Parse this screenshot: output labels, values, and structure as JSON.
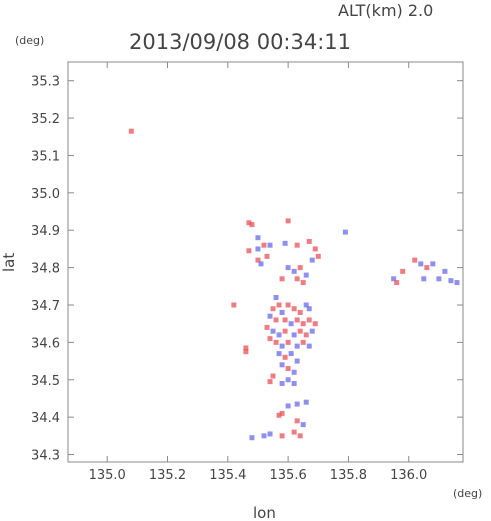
{
  "header": {
    "alt_label": "ALT(km) 2.0",
    "timestamp": "2013/09/08 00:34:11"
  },
  "chart_data": {
    "type": "scatter",
    "title": "2013/09/08 00:34:11",
    "subtitle": "ALT(km) 2.0",
    "xlabel": "lon",
    "ylabel": "lat",
    "x_unit": "(deg)",
    "y_unit": "(deg)",
    "xlim": [
      134.87,
      136.18
    ],
    "ylim": [
      34.28,
      35.35
    ],
    "xticks": [
      135.0,
      135.2,
      135.4,
      135.6,
      135.8,
      136.0
    ],
    "xtick_labels": [
      "135.0",
      "135.2",
      "135.4",
      "135.6",
      "135.8",
      "136.0"
    ],
    "yticks": [
      34.3,
      34.4,
      34.5,
      34.6,
      34.7,
      34.8,
      34.9,
      35.0,
      35.1,
      35.2,
      35.3
    ],
    "ytick_labels": [
      "34.3",
      "34.4",
      "34.5",
      "34.6",
      "34.7",
      "34.8",
      "34.9",
      "35.0",
      "35.1",
      "35.2",
      "35.3"
    ],
    "grid": false,
    "colors": {
      "positive": "#e8525a",
      "negative": "#6a6ae8"
    },
    "points": [
      {
        "lon": 135.08,
        "lat": 35.165,
        "sign": "pos"
      },
      {
        "lon": 135.47,
        "lat": 34.92,
        "sign": "pos"
      },
      {
        "lon": 135.48,
        "lat": 34.915,
        "sign": "pos"
      },
      {
        "lon": 135.6,
        "lat": 34.925,
        "sign": "pos"
      },
      {
        "lon": 135.5,
        "lat": 34.88,
        "sign": "neg"
      },
      {
        "lon": 135.52,
        "lat": 34.86,
        "sign": "pos"
      },
      {
        "lon": 135.5,
        "lat": 34.85,
        "sign": "neg"
      },
      {
        "lon": 135.47,
        "lat": 34.845,
        "sign": "pos"
      },
      {
        "lon": 135.53,
        "lat": 34.83,
        "sign": "pos"
      },
      {
        "lon": 135.5,
        "lat": 34.82,
        "sign": "pos"
      },
      {
        "lon": 135.51,
        "lat": 34.81,
        "sign": "neg"
      },
      {
        "lon": 135.54,
        "lat": 34.86,
        "sign": "neg"
      },
      {
        "lon": 135.59,
        "lat": 34.865,
        "sign": "neg"
      },
      {
        "lon": 135.63,
        "lat": 34.86,
        "sign": "pos"
      },
      {
        "lon": 135.67,
        "lat": 34.87,
        "sign": "pos"
      },
      {
        "lon": 135.69,
        "lat": 34.85,
        "sign": "pos"
      },
      {
        "lon": 135.7,
        "lat": 34.83,
        "sign": "pos"
      },
      {
        "lon": 135.68,
        "lat": 34.82,
        "sign": "neg"
      },
      {
        "lon": 135.79,
        "lat": 34.895,
        "sign": "neg"
      },
      {
        "lon": 135.6,
        "lat": 34.8,
        "sign": "neg"
      },
      {
        "lon": 135.62,
        "lat": 34.79,
        "sign": "neg"
      },
      {
        "lon": 135.63,
        "lat": 34.77,
        "sign": "pos"
      },
      {
        "lon": 135.65,
        "lat": 34.76,
        "sign": "pos"
      },
      {
        "lon": 135.64,
        "lat": 34.8,
        "sign": "pos"
      },
      {
        "lon": 135.66,
        "lat": 34.78,
        "sign": "neg"
      },
      {
        "lon": 135.58,
        "lat": 34.77,
        "sign": "pos"
      },
      {
        "lon": 135.95,
        "lat": 34.77,
        "sign": "neg"
      },
      {
        "lon": 135.96,
        "lat": 34.76,
        "sign": "pos"
      },
      {
        "lon": 135.98,
        "lat": 34.79,
        "sign": "pos"
      },
      {
        "lon": 136.02,
        "lat": 34.82,
        "sign": "pos"
      },
      {
        "lon": 136.04,
        "lat": 34.81,
        "sign": "neg"
      },
      {
        "lon": 136.06,
        "lat": 34.8,
        "sign": "pos"
      },
      {
        "lon": 136.08,
        "lat": 34.81,
        "sign": "neg"
      },
      {
        "lon": 136.1,
        "lat": 34.77,
        "sign": "neg"
      },
      {
        "lon": 136.12,
        "lat": 34.79,
        "sign": "neg"
      },
      {
        "lon": 136.14,
        "lat": 34.765,
        "sign": "neg"
      },
      {
        "lon": 136.16,
        "lat": 34.76,
        "sign": "neg"
      },
      {
        "lon": 136.05,
        "lat": 34.77,
        "sign": "neg"
      },
      {
        "lon": 135.56,
        "lat": 34.72,
        "sign": "neg"
      },
      {
        "lon": 135.57,
        "lat": 34.7,
        "sign": "pos"
      },
      {
        "lon": 135.55,
        "lat": 34.69,
        "sign": "pos"
      },
      {
        "lon": 135.58,
        "lat": 34.68,
        "sign": "neg"
      },
      {
        "lon": 135.6,
        "lat": 34.7,
        "sign": "pos"
      },
      {
        "lon": 135.62,
        "lat": 34.69,
        "sign": "pos"
      },
      {
        "lon": 135.64,
        "lat": 34.68,
        "sign": "pos"
      },
      {
        "lon": 135.66,
        "lat": 34.7,
        "sign": "neg"
      },
      {
        "lon": 135.67,
        "lat": 34.69,
        "sign": "neg"
      },
      {
        "lon": 135.54,
        "lat": 34.67,
        "sign": "neg"
      },
      {
        "lon": 135.56,
        "lat": 34.66,
        "sign": "pos"
      },
      {
        "lon": 135.59,
        "lat": 34.66,
        "sign": "pos"
      },
      {
        "lon": 135.61,
        "lat": 34.65,
        "sign": "neg"
      },
      {
        "lon": 135.63,
        "lat": 34.66,
        "sign": "pos"
      },
      {
        "lon": 135.65,
        "lat": 34.65,
        "sign": "pos"
      },
      {
        "lon": 135.67,
        "lat": 34.66,
        "sign": "pos"
      },
      {
        "lon": 135.69,
        "lat": 34.65,
        "sign": "pos"
      },
      {
        "lon": 135.53,
        "lat": 34.64,
        "sign": "pos"
      },
      {
        "lon": 135.55,
        "lat": 34.63,
        "sign": "neg"
      },
      {
        "lon": 135.57,
        "lat": 34.62,
        "sign": "neg"
      },
      {
        "lon": 135.59,
        "lat": 34.63,
        "sign": "pos"
      },
      {
        "lon": 135.62,
        "lat": 34.62,
        "sign": "neg"
      },
      {
        "lon": 135.64,
        "lat": 34.63,
        "sign": "pos"
      },
      {
        "lon": 135.66,
        "lat": 34.62,
        "sign": "pos"
      },
      {
        "lon": 135.68,
        "lat": 34.63,
        "sign": "neg"
      },
      {
        "lon": 135.54,
        "lat": 34.61,
        "sign": "pos"
      },
      {
        "lon": 135.56,
        "lat": 34.6,
        "sign": "pos"
      },
      {
        "lon": 135.58,
        "lat": 34.59,
        "sign": "neg"
      },
      {
        "lon": 135.6,
        "lat": 34.6,
        "sign": "pos"
      },
      {
        "lon": 135.63,
        "lat": 34.59,
        "sign": "neg"
      },
      {
        "lon": 135.65,
        "lat": 34.6,
        "sign": "pos"
      },
      {
        "lon": 135.67,
        "lat": 34.59,
        "sign": "neg"
      },
      {
        "lon": 135.46,
        "lat": 34.585,
        "sign": "pos"
      },
      {
        "lon": 135.46,
        "lat": 34.575,
        "sign": "pos"
      },
      {
        "lon": 135.57,
        "lat": 34.57,
        "sign": "neg"
      },
      {
        "lon": 135.59,
        "lat": 34.56,
        "sign": "pos"
      },
      {
        "lon": 135.61,
        "lat": 34.57,
        "sign": "neg"
      },
      {
        "lon": 135.63,
        "lat": 34.55,
        "sign": "neg"
      },
      {
        "lon": 135.58,
        "lat": 34.54,
        "sign": "neg"
      },
      {
        "lon": 135.6,
        "lat": 34.53,
        "sign": "pos"
      },
      {
        "lon": 135.62,
        "lat": 34.52,
        "sign": "neg"
      },
      {
        "lon": 135.55,
        "lat": 34.51,
        "sign": "pos"
      },
      {
        "lon": 135.6,
        "lat": 34.5,
        "sign": "neg"
      },
      {
        "lon": 135.62,
        "lat": 34.49,
        "sign": "neg"
      },
      {
        "lon": 135.58,
        "lat": 34.49,
        "sign": "neg"
      },
      {
        "lon": 135.54,
        "lat": 34.495,
        "sign": "pos"
      },
      {
        "lon": 135.6,
        "lat": 34.43,
        "sign": "neg"
      },
      {
        "lon": 135.63,
        "lat": 34.435,
        "sign": "neg"
      },
      {
        "lon": 135.66,
        "lat": 34.44,
        "sign": "neg"
      },
      {
        "lon": 135.58,
        "lat": 34.41,
        "sign": "pos"
      },
      {
        "lon": 135.57,
        "lat": 34.405,
        "sign": "pos"
      },
      {
        "lon": 135.63,
        "lat": 34.39,
        "sign": "pos"
      },
      {
        "lon": 135.65,
        "lat": 34.38,
        "sign": "neg"
      },
      {
        "lon": 135.62,
        "lat": 34.36,
        "sign": "pos"
      },
      {
        "lon": 135.64,
        "lat": 34.35,
        "sign": "pos"
      },
      {
        "lon": 135.58,
        "lat": 34.35,
        "sign": "pos"
      },
      {
        "lon": 135.54,
        "lat": 34.355,
        "sign": "neg"
      },
      {
        "lon": 135.52,
        "lat": 34.35,
        "sign": "neg"
      },
      {
        "lon": 135.48,
        "lat": 34.345,
        "sign": "neg"
      },
      {
        "lon": 135.42,
        "lat": 34.7,
        "sign": "pos"
      }
    ]
  }
}
